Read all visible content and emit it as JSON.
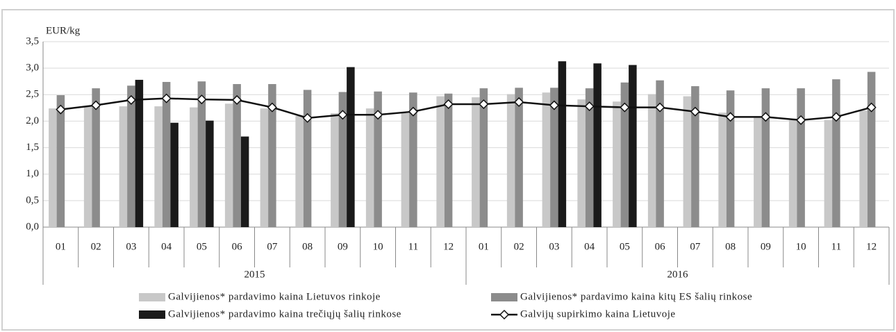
{
  "chart_data": {
    "type": "bar-line",
    "y_label": "EUR/kg",
    "categories": [
      "01",
      "02",
      "03",
      "04",
      "05",
      "06",
      "07",
      "08",
      "09",
      "10",
      "11",
      "12",
      "01",
      "02",
      "03",
      "04",
      "05",
      "06",
      "07",
      "08",
      "09",
      "10",
      "11",
      "12"
    ],
    "x_groups": [
      "2015",
      "2016"
    ],
    "ylim": [
      0,
      3.5
    ],
    "yticks": [
      {
        "value": 0,
        "label": "0,0"
      },
      {
        "value": 0.5,
        "label": "0,5"
      },
      {
        "value": 1,
        "label": "1,0"
      },
      {
        "value": 1.5,
        "label": "1,5"
      },
      {
        "value": 2,
        "label": "2,0"
      },
      {
        "value": 2.5,
        "label": "2,5"
      },
      {
        "value": 3,
        "label": "3,0"
      },
      {
        "value": 3.5,
        "label": "3,5"
      }
    ],
    "grid": true,
    "series": [
      {
        "name": "Galvijienos* pardavimo kaina Lietuvos rinkoje",
        "kind": "bar",
        "color": "#c8c8c8",
        "values": [
          2.24,
          2.27,
          2.28,
          2.28,
          2.26,
          2.33,
          2.24,
          2.1,
          2.15,
          2.24,
          2.15,
          2.47,
          2.45,
          2.51,
          2.54,
          2.41,
          2.37,
          2.51,
          2.47,
          2.16,
          2.08,
          2.02,
          2.02,
          2.2
        ]
      },
      {
        "name": "Galvijienos* pardavimo kaina kitų ES šalių rinkose",
        "kind": "bar",
        "color": "#8c8c8c",
        "values": [
          2.49,
          2.62,
          2.67,
          2.74,
          2.75,
          2.7,
          2.7,
          2.59,
          2.55,
          2.56,
          2.54,
          2.52,
          2.62,
          2.63,
          2.63,
          2.62,
          2.73,
          2.77,
          2.66,
          2.58,
          2.62,
          2.62,
          2.79,
          2.93
        ]
      },
      {
        "name": "Galvijienos* pardavimo kaina trečiųjų šalių rinkose",
        "kind": "bar",
        "color": "#1a1a1a",
        "values": [
          null,
          null,
          2.78,
          1.97,
          2.01,
          1.71,
          null,
          null,
          3.02,
          null,
          null,
          null,
          null,
          null,
          3.13,
          3.09,
          3.06,
          null,
          null,
          null,
          null,
          null,
          null,
          null
        ]
      },
      {
        "name": "Galvijų supirkimo kaina Lietuvoje",
        "kind": "line",
        "color": "#111111",
        "values": [
          2.22,
          2.3,
          2.4,
          2.43,
          2.41,
          2.4,
          2.26,
          2.06,
          2.12,
          2.12,
          2.18,
          2.32,
          2.32,
          2.36,
          2.3,
          2.28,
          2.26,
          2.26,
          2.18,
          2.08,
          2.08,
          2.02,
          2.08,
          2.26
        ]
      }
    ]
  }
}
